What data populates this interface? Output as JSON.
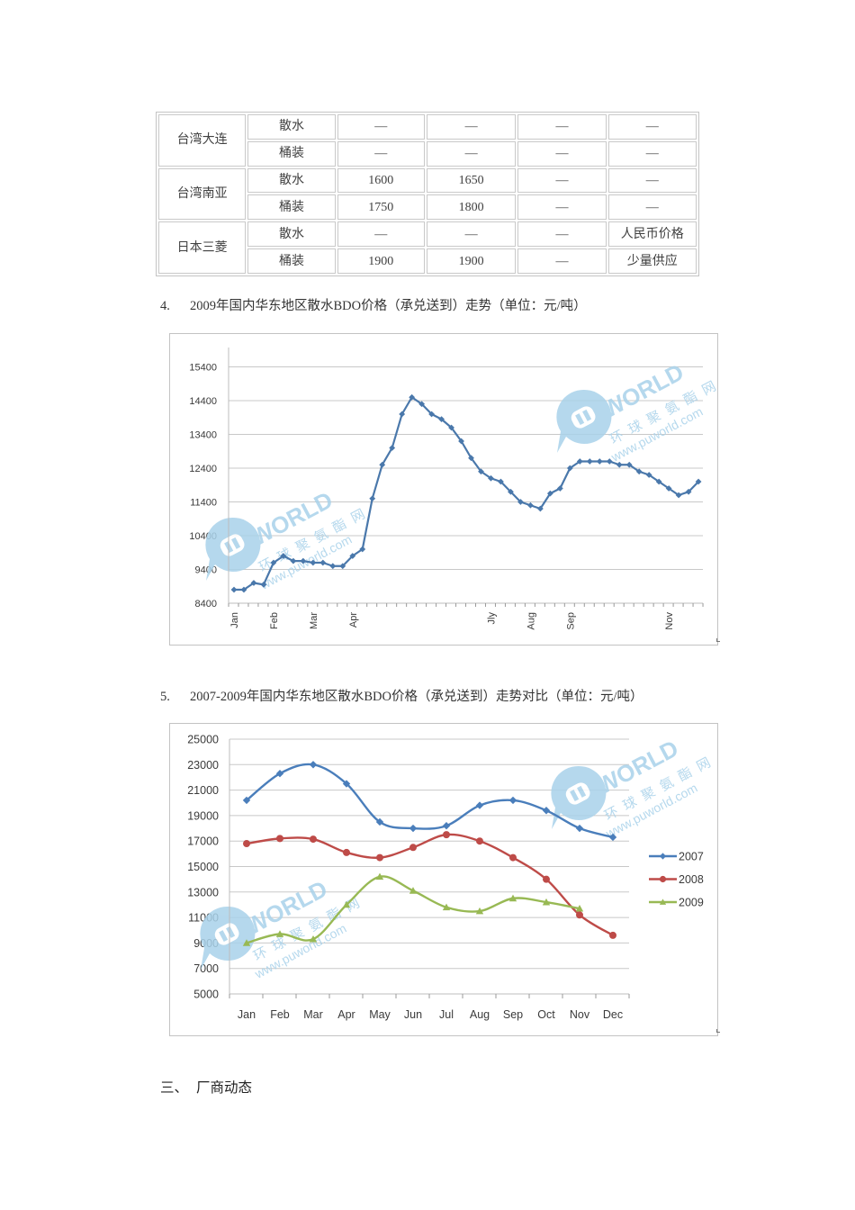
{
  "table": {
    "groups": [
      {
        "name": "台湾大连",
        "rows": [
          {
            "type": "散水",
            "values": [
              "—",
              "—",
              "—",
              "—"
            ]
          },
          {
            "type": "桶装",
            "values": [
              "—",
              "—",
              "—",
              "—"
            ]
          }
        ]
      },
      {
        "name": "台湾南亚",
        "rows": [
          {
            "type": "散水",
            "values": [
              "1600",
              "1650",
              "—",
              "—"
            ]
          },
          {
            "type": "桶装",
            "values": [
              "1750",
              "1800",
              "—",
              "—"
            ]
          }
        ]
      },
      {
        "name": "日本三菱",
        "rows": [
          {
            "type": "散水",
            "values": [
              "—",
              "—",
              "—",
              "人民币价格"
            ]
          },
          {
            "type": "桶装",
            "values": [
              "1900",
              "1900",
              "—",
              "少量供应"
            ]
          }
        ]
      }
    ]
  },
  "section4": {
    "number": "4.",
    "title": "2009年国内华东地区散水BDO价格（承兑送到）走势（单位：元/吨）"
  },
  "section5": {
    "number": "5.",
    "title": "2007-2009年国内华东地区散水BDO价格（承兑送到）走势对比（单位：元/吨）"
  },
  "section3": {
    "number": "三、",
    "title": "厂商动态"
  },
  "watermark": {
    "brand": "WORLD",
    "cn": "环 球 聚 氨 酯 网",
    "url": "www.puworld.com",
    "color": "#a9d2ea"
  },
  "chart_data": [
    {
      "type": "line",
      "title": "2009年国内华东地区散水BDO价格（承兑送到）走势（单位：元/吨）",
      "xlabel": "",
      "ylabel": "",
      "ylim": [
        8400,
        15400
      ],
      "yticks": [
        8400,
        9400,
        10400,
        11400,
        12400,
        13400,
        14400,
        15400
      ],
      "grid": true,
      "legend": null,
      "x_tick_labels": [
        {
          "index": 0,
          "label": "Jan"
        },
        {
          "index": 4,
          "label": "Feb"
        },
        {
          "index": 8,
          "label": "Mar"
        },
        {
          "index": 12,
          "label": "Apr"
        },
        {
          "index": 26,
          "label": "Jly"
        },
        {
          "index": 30,
          "label": "Aug"
        },
        {
          "index": 34,
          "label": "Sep"
        },
        {
          "index": 44,
          "label": "Nov"
        }
      ],
      "series": [
        {
          "name": "2009",
          "color": "#4a78ab",
          "marker": "diamond",
          "values": [
            8800,
            8800,
            9000,
            8950,
            9600,
            9800,
            9650,
            9650,
            9600,
            9600,
            9500,
            9500,
            9800,
            10000,
            11500,
            12500,
            13000,
            14000,
            14500,
            14300,
            14000,
            13850,
            13600,
            13200,
            12700,
            12300,
            12100,
            12000,
            11700,
            11400,
            11300,
            11200,
            11650,
            11800,
            12400,
            12600,
            12600,
            12600,
            12600,
            12500,
            12500,
            12300,
            12200,
            12000,
            11800,
            11600,
            11700,
            12000
          ]
        }
      ]
    },
    {
      "type": "line",
      "title": "2007-2009年国内华东地区散水BDO价格（承兑送到）走势对比（单位：元/吨）",
      "xlabel": "",
      "ylabel": "",
      "ylim": [
        5000,
        25000
      ],
      "yticks": [
        5000,
        7000,
        9000,
        11000,
        13000,
        15000,
        17000,
        19000,
        21000,
        23000,
        25000
      ],
      "grid": true,
      "legend": "right",
      "smooth": true,
      "categories": [
        "Jan",
        "Feb",
        "Mar",
        "Apr",
        "May",
        "Jun",
        "Jul",
        "Aug",
        "Sep",
        "Oct",
        "Nov",
        "Dec"
      ],
      "series": [
        {
          "name": "2007",
          "color": "#4a7ebb",
          "marker": "diamond",
          "values": [
            20200,
            22300,
            23000,
            21500,
            18500,
            18000,
            18200,
            19800,
            20200,
            19400,
            18000,
            17300
          ]
        },
        {
          "name": "2008",
          "color": "#be4b48",
          "marker": "circle",
          "values": [
            16800,
            17200,
            17150,
            16100,
            15700,
            16500,
            17500,
            17000,
            15700,
            14000,
            11200,
            9600
          ]
        },
        {
          "name": "2009",
          "color": "#98b954",
          "marker": "triangle",
          "values": [
            9000,
            9700,
            9300,
            12000,
            14200,
            13100,
            11800,
            11500,
            12500,
            12200,
            11700,
            null
          ]
        }
      ]
    }
  ]
}
